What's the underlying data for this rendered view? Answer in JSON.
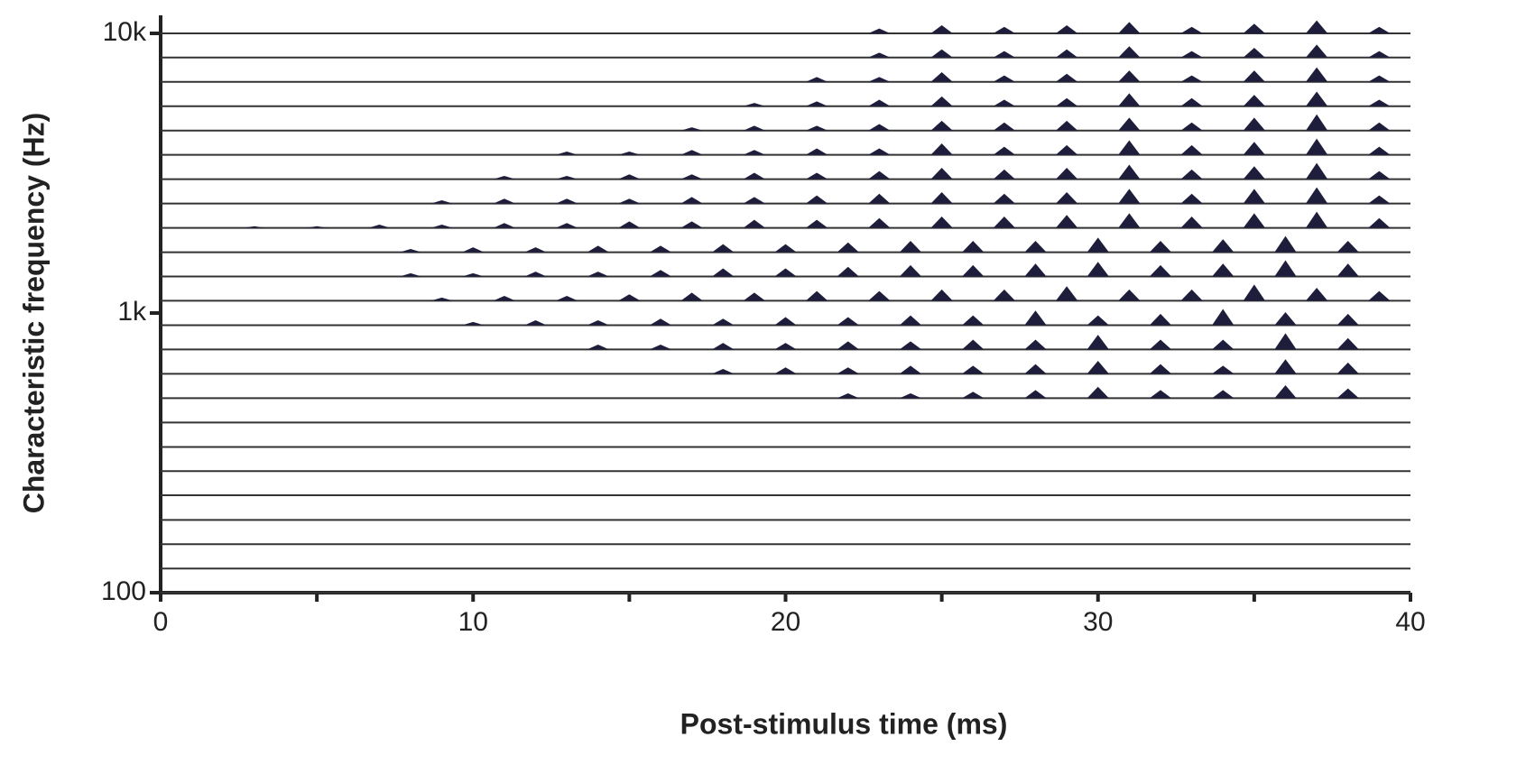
{
  "chart_data": {
    "type": "neurogram",
    "xlabel": "Post-stimulus time (ms)",
    "ylabel": "Characteristic frequency (Hz)",
    "xlim": [
      0,
      40
    ],
    "xticks": [
      0,
      10,
      20,
      30,
      40
    ],
    "xminor": [
      5,
      15,
      25,
      35
    ],
    "ylim": [
      100,
      10000
    ],
    "log_y": true,
    "yticks": [
      {
        "value": 100,
        "label": "100"
      },
      {
        "value": 1000,
        "label": "1k"
      },
      {
        "value": 10000,
        "label": "10k"
      }
    ],
    "line_color": "#333333",
    "peak_color": "#1e1e3c",
    "series": [
      {
        "cf": 100,
        "peaks": [],
        "values": []
      },
      {
        "cf": 122,
        "peaks": [],
        "values": []
      },
      {
        "cf": 149,
        "peaks": [],
        "values": []
      },
      {
        "cf": 182,
        "peaks": [],
        "values": []
      },
      {
        "cf": 223,
        "peaks": [],
        "values": []
      },
      {
        "cf": 272,
        "peaks": [],
        "values": []
      },
      {
        "cf": 332,
        "peaks": [],
        "values": []
      },
      {
        "cf": 406,
        "peaks": [],
        "values": []
      },
      {
        "cf": 496,
        "peaks": [
          22,
          24,
          26,
          28,
          30,
          32,
          34,
          36,
          38
        ],
        "values": [
          0.3,
          0.3,
          0.4,
          0.5,
          0.7,
          0.5,
          0.5,
          0.8,
          0.6
        ]
      },
      {
        "cf": 606,
        "peaks": [
          18,
          20,
          22,
          24,
          26,
          28,
          30,
          32,
          34,
          36,
          38
        ],
        "values": [
          0.3,
          0.4,
          0.4,
          0.5,
          0.5,
          0.6,
          0.8,
          0.6,
          0.5,
          0.9,
          0.7
        ]
      },
      {
        "cf": 741,
        "peaks": [
          14,
          16,
          18,
          20,
          22,
          24,
          26,
          28,
          30,
          32,
          34,
          36,
          38
        ],
        "values": [
          0.3,
          0.3,
          0.4,
          0.4,
          0.5,
          0.5,
          0.6,
          0.6,
          0.9,
          0.6,
          0.6,
          1.0,
          0.7
        ]
      },
      {
        "cf": 905,
        "peaks": [
          10,
          12,
          14,
          16,
          18,
          20,
          22,
          24,
          26,
          28,
          30,
          32,
          34,
          36,
          38
        ],
        "values": [
          0.2,
          0.3,
          0.3,
          0.4,
          0.4,
          0.5,
          0.5,
          0.6,
          0.6,
          0.9,
          0.6,
          0.7,
          1.0,
          0.8,
          0.7
        ]
      },
      {
        "cf": 1106,
        "peaks": [
          9,
          11,
          13,
          15,
          17,
          19,
          21,
          23,
          25,
          27,
          29,
          31,
          33,
          35,
          37,
          39
        ],
        "values": [
          0.2,
          0.3,
          0.3,
          0.4,
          0.5,
          0.5,
          0.6,
          0.6,
          0.7,
          0.7,
          0.9,
          0.7,
          0.7,
          1.0,
          0.8,
          0.6
        ]
      },
      {
        "cf": 1351,
        "peaks": [
          8,
          10,
          12,
          14,
          16,
          18,
          20,
          22,
          24,
          26,
          28,
          30,
          32,
          34,
          36,
          38
        ],
        "values": [
          0.2,
          0.2,
          0.3,
          0.3,
          0.4,
          0.5,
          0.5,
          0.6,
          0.7,
          0.7,
          0.8,
          0.9,
          0.7,
          0.8,
          1.0,
          0.8
        ]
      },
      {
        "cf": 1650,
        "peaks": [
          8,
          10,
          12,
          14,
          16,
          18,
          20,
          22,
          24,
          26,
          28,
          30,
          32,
          34,
          36,
          38
        ],
        "values": [
          0.2,
          0.3,
          0.3,
          0.4,
          0.4,
          0.5,
          0.5,
          0.6,
          0.7,
          0.7,
          0.7,
          0.9,
          0.7,
          0.8,
          1.0,
          0.7
        ]
      },
      {
        "cf": 2016,
        "peaks": [
          3,
          5,
          7,
          9,
          11,
          13,
          15,
          17,
          19,
          21,
          23,
          25,
          27,
          29,
          31,
          33,
          35,
          37,
          39
        ],
        "values": [
          0.1,
          0.1,
          0.2,
          0.2,
          0.3,
          0.3,
          0.4,
          0.4,
          0.5,
          0.5,
          0.6,
          0.7,
          0.7,
          0.8,
          0.9,
          0.7,
          0.9,
          1.0,
          0.6
        ]
      },
      {
        "cf": 2464,
        "peaks": [
          9,
          11,
          13,
          15,
          17,
          19,
          21,
          23,
          25,
          27,
          29,
          31,
          33,
          35,
          37,
          39
        ],
        "values": [
          0.2,
          0.3,
          0.3,
          0.3,
          0.4,
          0.4,
          0.5,
          0.6,
          0.7,
          0.6,
          0.7,
          0.9,
          0.6,
          0.9,
          1.0,
          0.5
        ]
      },
      {
        "cf": 3010,
        "peaks": [
          11,
          13,
          15,
          17,
          19,
          21,
          23,
          25,
          27,
          29,
          31,
          33,
          35,
          37,
          39
        ],
        "values": [
          0.2,
          0.2,
          0.3,
          0.3,
          0.4,
          0.4,
          0.5,
          0.7,
          0.6,
          0.7,
          0.9,
          0.6,
          0.8,
          1.0,
          0.5
        ]
      },
      {
        "cf": 3678,
        "peaks": [
          13,
          15,
          17,
          19,
          21,
          23,
          25,
          27,
          29,
          31,
          33,
          35,
          37,
          39
        ],
        "values": [
          0.2,
          0.2,
          0.3,
          0.3,
          0.4,
          0.4,
          0.7,
          0.5,
          0.6,
          0.9,
          0.6,
          0.8,
          1.0,
          0.5
        ]
      },
      {
        "cf": 4493,
        "peaks": [
          17,
          19,
          21,
          23,
          25,
          27,
          29,
          31,
          33,
          35,
          37,
          39
        ],
        "values": [
          0.2,
          0.3,
          0.3,
          0.4,
          0.6,
          0.5,
          0.6,
          0.8,
          0.5,
          0.8,
          1.0,
          0.5
        ]
      },
      {
        "cf": 5490,
        "peaks": [
          19,
          21,
          23,
          25,
          27,
          29,
          31,
          33,
          35,
          37,
          39
        ],
        "values": [
          0.2,
          0.3,
          0.4,
          0.6,
          0.4,
          0.5,
          0.8,
          0.5,
          0.7,
          0.9,
          0.4
        ]
      },
      {
        "cf": 6707,
        "peaks": [
          21,
          23,
          25,
          27,
          29,
          31,
          33,
          35,
          37,
          39
        ],
        "values": [
          0.3,
          0.3,
          0.6,
          0.4,
          0.5,
          0.7,
          0.4,
          0.7,
          0.9,
          0.4
        ]
      },
      {
        "cf": 8195,
        "peaks": [
          23,
          25,
          27,
          29,
          31,
          33,
          35,
          37,
          39
        ],
        "values": [
          0.3,
          0.5,
          0.4,
          0.5,
          0.7,
          0.4,
          0.6,
          0.8,
          0.4
        ]
      },
      {
        "cf": 10000,
        "peaks": [
          23,
          25,
          27,
          29,
          31,
          33,
          35,
          37,
          39
        ],
        "values": [
          0.3,
          0.5,
          0.4,
          0.5,
          0.7,
          0.4,
          0.6,
          0.8,
          0.4
        ]
      }
    ]
  }
}
